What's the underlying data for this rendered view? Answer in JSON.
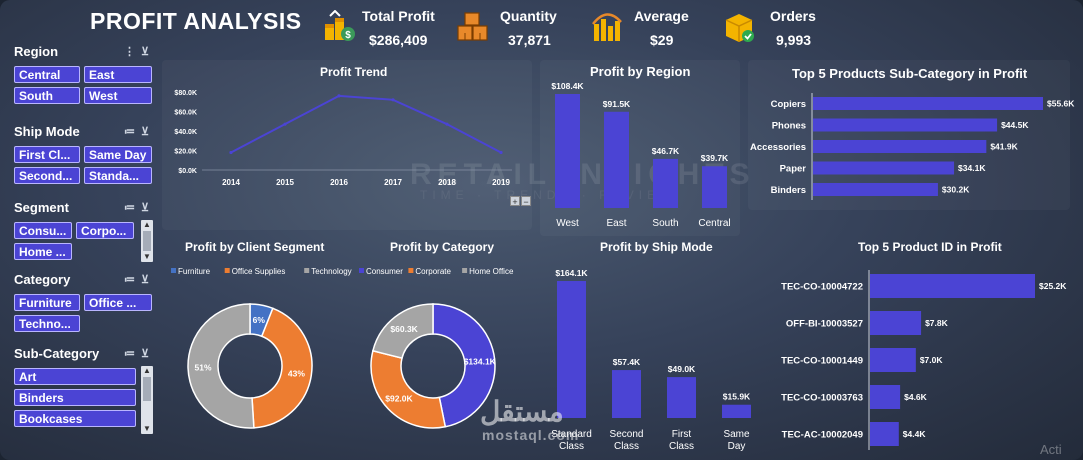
{
  "title": "PROFIT ANALYSIS",
  "kpis": {
    "total_profit": {
      "label": "Total Profit",
      "value": "$286,409"
    },
    "quantity": {
      "label": "Quantity",
      "value": "37,871"
    },
    "average": {
      "label": "Average",
      "value": "$29"
    },
    "orders": {
      "label": "Orders",
      "value": "9,993"
    }
  },
  "slicers": {
    "region": {
      "label": "Region",
      "items": [
        "Central",
        "East",
        "South",
        "West"
      ]
    },
    "ship_mode": {
      "label": "Ship Mode",
      "items": [
        "First Cl...",
        "Same Day",
        "Second...",
        "Standa..."
      ]
    },
    "segment": {
      "label": "Segment",
      "items": [
        "Consu...",
        "Corpo...",
        "Home ..."
      ]
    },
    "category": {
      "label": "Category",
      "items": [
        "Furniture",
        "Office ...",
        "Techno..."
      ]
    },
    "sub_category": {
      "label": "Sub-Category",
      "items": [
        "Art",
        "Binders",
        "Bookcases"
      ]
    }
  },
  "zoom_controls": {
    "plus": "+",
    "minus": "−"
  },
  "background_text": {
    "line1": "RETAIL INSIGHTS",
    "line2": "TIME · TRENDS · REVIEW"
  },
  "watermark": {
    "arabic": "مستقل",
    "latin": "mostaql.com"
  },
  "activation_text": "Acti",
  "chart_data": [
    {
      "id": "trend",
      "type": "line",
      "title": "Profit Trend",
      "x": [
        "2014",
        "2015",
        "2016",
        "2017",
        "2018",
        "2019"
      ],
      "values": [
        18000,
        47000,
        76000,
        72000,
        47000,
        18000
      ],
      "y_ticks": [
        "$0.0K",
        "$20.0K",
        "$40.0K",
        "$60.0K",
        "$80.0K"
      ],
      "ylim": [
        0,
        80000
      ],
      "color": "#4b44d4"
    },
    {
      "id": "region",
      "type": "bar",
      "title": "Profit by Region",
      "categories": [
        "West",
        "East",
        "South",
        "Central"
      ],
      "values": [
        108.4,
        91.5,
        46.7,
        39.7
      ],
      "labels": [
        "$108.4K",
        "$91.5K",
        "$46.7K",
        "$39.7K"
      ],
      "ylim": [
        0,
        108.4
      ],
      "color": "#4b44d4"
    },
    {
      "id": "subcat",
      "type": "bar",
      "orientation": "horizontal",
      "title": "Top 5 Products Sub-Category in Profit",
      "categories": [
        "Copiers",
        "Phones",
        "Accessories",
        "Paper",
        "Binders"
      ],
      "values": [
        55.6,
        44.5,
        41.9,
        34.1,
        30.2
      ],
      "labels": [
        "$55.6K",
        "$44.5K",
        "$41.9K",
        "$34.1K",
        "$30.2K"
      ],
      "xlim": [
        0,
        55.6
      ],
      "color": "#4b44d4"
    },
    {
      "id": "segment",
      "type": "pie",
      "donut": true,
      "title": "Profit by Client Segment",
      "legend": [
        "Furniture",
        "Office Supplies",
        "Technology"
      ],
      "values": [
        6,
        43,
        51
      ],
      "labels": [
        "6%",
        "43%",
        "51%"
      ],
      "colors": [
        "#4472c4",
        "#ed7d31",
        "#a5a5a5"
      ]
    },
    {
      "id": "category",
      "type": "pie",
      "donut": true,
      "title": "Profit by Category",
      "legend": [
        "Consumer",
        "Corporate",
        "Home Office"
      ],
      "values": [
        134.1,
        92.0,
        60.3
      ],
      "labels": [
        "$134.1K",
        "$92.0K",
        "$60.3K"
      ],
      "colors": [
        "#4b44d4",
        "#ed7d31",
        "#a5a5a5"
      ]
    },
    {
      "id": "shipmode",
      "type": "bar",
      "title": "Profit by Ship Mode",
      "categories": [
        "Standard Class",
        "Second Class",
        "First Class",
        "Same Day"
      ],
      "values": [
        164.1,
        57.4,
        49.0,
        15.9
      ],
      "labels": [
        "$164.1K",
        "$57.4K",
        "$49.0K",
        "$15.9K"
      ],
      "ylim": [
        0,
        164.1
      ],
      "color": "#4b44d4"
    },
    {
      "id": "productid",
      "type": "bar",
      "orientation": "horizontal",
      "title": "Top 5 Product ID in Profit",
      "categories": [
        "TEC-CO-10004722",
        "OFF-BI-10003527",
        "TEC-CO-10001449",
        "TEC-CO-10003763",
        "TEC-AC-10002049"
      ],
      "values": [
        25.2,
        7.8,
        7.0,
        4.6,
        4.4
      ],
      "labels": [
        "$25.2K",
        "$7.8K",
        "$7.0K",
        "$4.6K",
        "$4.4K"
      ],
      "xlim": [
        0,
        25.2
      ],
      "color": "#4b44d4"
    }
  ],
  "colors": {
    "accent": "#4b44d4",
    "orange": "#ed7d31",
    "gray": "#a5a5a5",
    "blue": "#4472c4"
  }
}
